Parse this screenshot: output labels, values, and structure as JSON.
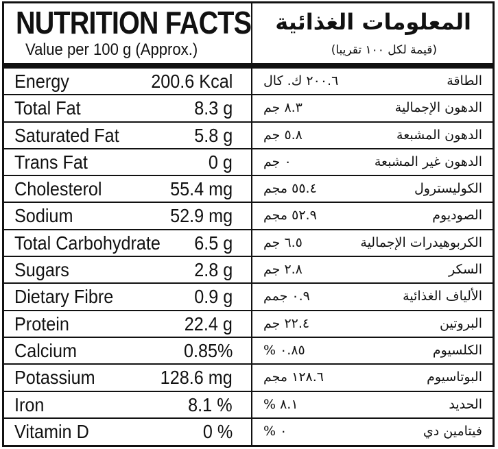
{
  "header": {
    "title_en": "NUTRITION FACTS",
    "subtitle_en": "Value per 100 g (Approx.)",
    "title_ar": "المعلومات الغذائية",
    "subtitle_ar": "(قيمة لكل ١٠٠ تقريبا)"
  },
  "rows": [
    {
      "name_en": "Energy",
      "value_en": "200.6 Kcal",
      "name_ar": "الطاقة",
      "value_ar": "٢٠٠.٦ ك. كال"
    },
    {
      "name_en": "Total Fat",
      "value_en": "8.3 g",
      "name_ar": "الدهون الإجمالية",
      "value_ar": "٨.٣ جم"
    },
    {
      "name_en": "Saturated Fat",
      "value_en": "5.8 g",
      "name_ar": "الدهون المشبعة",
      "value_ar": "٥.٨ جم"
    },
    {
      "name_en": "Trans Fat",
      "value_en": "0 g",
      "name_ar": "الدهون غير المشبعة",
      "value_ar": "٠ جم"
    },
    {
      "name_en": "Cholesterol",
      "value_en": "55.4 mg",
      "name_ar": "الكوليسترول",
      "value_ar": "٥٥.٤ مجم"
    },
    {
      "name_en": "Sodium",
      "value_en": "52.9 mg",
      "name_ar": "الصوديوم",
      "value_ar": "٥٢.٩ مجم"
    },
    {
      "name_en": "Total Carbohydrate",
      "value_en": "6.5 g",
      "name_ar": "الكربوهيدرات الإجمالية",
      "value_ar": "٦.٥ جم"
    },
    {
      "name_en": "Sugars",
      "value_en": "2.8 g",
      "name_ar": "السكر",
      "value_ar": "٢.٨ جم"
    },
    {
      "name_en": "Dietary Fibre",
      "value_en": "0.9 g",
      "name_ar": "الألياف الغذائية",
      "value_ar": "٠.٩ جمم"
    },
    {
      "name_en": "Protein",
      "value_en": "22.4 g",
      "name_ar": "البروتين",
      "value_ar": "٢٢.٤ جم"
    },
    {
      "name_en": "Calcium",
      "value_en": "0.85%",
      "name_ar": "الكلسيوم",
      "value_ar": "٠.٨٥ %"
    },
    {
      "name_en": "Potassium",
      "value_en": "128.6 mg",
      "name_ar": "البوتاسيوم",
      "value_ar": "١٢٨.٦ مجم"
    },
    {
      "name_en": "Iron",
      "value_en": "8.1 %",
      "name_ar": "الحديد",
      "value_ar": "٨.١ %"
    },
    {
      "name_en": "Vitamin D",
      "value_en": "0 %",
      "name_ar": "فيتامين دي",
      "value_ar": "٠ %"
    }
  ]
}
